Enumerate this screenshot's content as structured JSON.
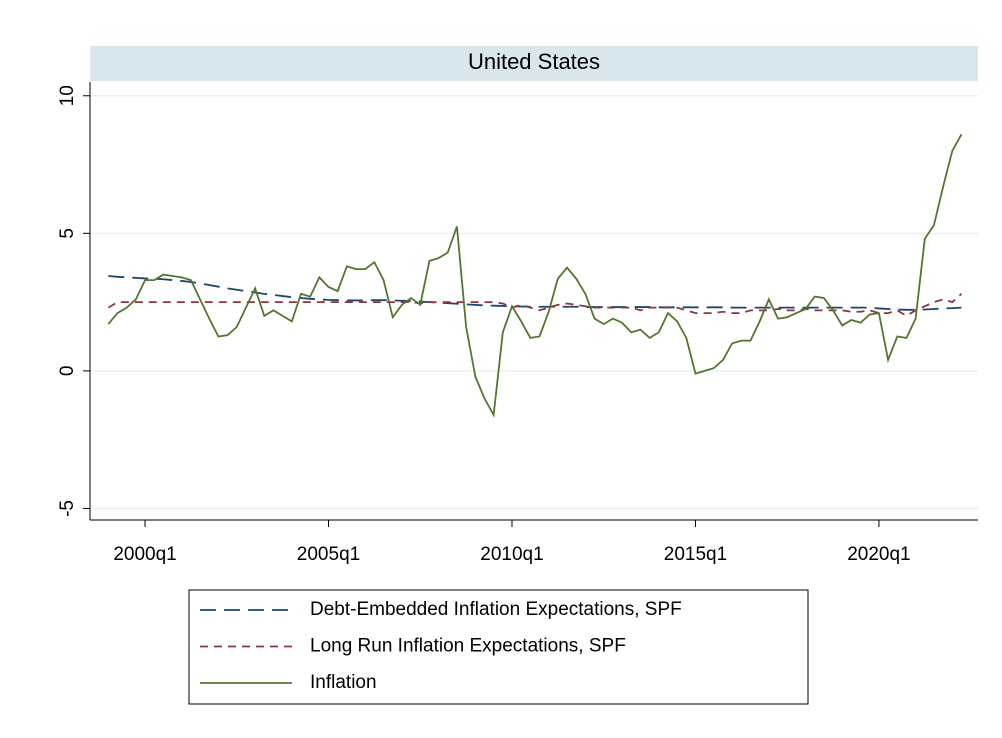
{
  "chart_data": {
    "type": "line",
    "title": "United States",
    "x": [
      1999,
      1999.25,
      1999.5,
      1999.75,
      2000,
      2000.25,
      2000.5,
      2000.75,
      2001,
      2001.25,
      2001.5,
      2001.75,
      2002,
      2002.25,
      2002.5,
      2002.75,
      2003,
      2003.25,
      2003.5,
      2003.75,
      2004,
      2004.25,
      2004.5,
      2004.75,
      2005,
      2005.25,
      2005.5,
      2005.75,
      2006,
      2006.25,
      2006.5,
      2006.75,
      2007,
      2007.25,
      2007.5,
      2007.75,
      2008,
      2008.25,
      2008.5,
      2008.75,
      2009,
      2009.25,
      2009.5,
      2009.75,
      2010,
      2010.25,
      2010.5,
      2010.75,
      2011,
      2011.25,
      2011.5,
      2011.75,
      2012,
      2012.25,
      2012.5,
      2012.75,
      2013,
      2013.25,
      2013.5,
      2013.75,
      2014,
      2014.25,
      2014.5,
      2014.75,
      2015,
      2015.25,
      2015.5,
      2015.75,
      2016,
      2016.25,
      2016.5,
      2016.75,
      2017,
      2017.25,
      2017.5,
      2017.75,
      2018,
      2018.25,
      2018.5,
      2018.75,
      2019,
      2019.25,
      2019.5,
      2019.75,
      2020,
      2020.25,
      2020.5,
      2020.75,
      2021,
      2021.25,
      2021.5,
      2021.75,
      2022,
      2022.25
    ],
    "series": [
      {
        "name": "Debt-Embedded Inflation Expectations, SPF",
        "color": "#1a476f",
        "dash": "16 8",
        "values": [
          3.45,
          3.42,
          3.4,
          3.38,
          3.36,
          3.35,
          3.33,
          3.3,
          3.27,
          3.23,
          3.18,
          3.12,
          3.06,
          3.0,
          2.95,
          2.9,
          2.85,
          2.8,
          2.76,
          2.72,
          2.68,
          2.65,
          2.62,
          2.6,
          2.58,
          2.57,
          2.56,
          2.56,
          2.56,
          2.57,
          2.57,
          2.56,
          2.55,
          2.54,
          2.52,
          2.5,
          2.48,
          2.46,
          2.44,
          2.42,
          2.4,
          2.38,
          2.37,
          2.36,
          2.35,
          2.34,
          2.33,
          2.33,
          2.33,
          2.33,
          2.33,
          2.33,
          2.32,
          2.32,
          2.32,
          2.32,
          2.32,
          2.32,
          2.32,
          2.32,
          2.31,
          2.31,
          2.31,
          2.31,
          2.31,
          2.31,
          2.31,
          2.31,
          2.3,
          2.3,
          2.3,
          2.3,
          2.3,
          2.3,
          2.3,
          2.3,
          2.3,
          2.3,
          2.3,
          2.3,
          2.3,
          2.3,
          2.3,
          2.3,
          2.27,
          2.25,
          2.23,
          2.22,
          2.22,
          2.23,
          2.25,
          2.27,
          2.28,
          2.3
        ]
      },
      {
        "name": "Long Run Inflation Expectations, SPF",
        "color": "#90353b",
        "dash": "8 6",
        "values": [
          2.3,
          2.5,
          2.5,
          2.5,
          2.5,
          2.5,
          2.5,
          2.5,
          2.5,
          2.5,
          2.5,
          2.5,
          2.5,
          2.5,
          2.5,
          2.5,
          2.5,
          2.5,
          2.5,
          2.5,
          2.5,
          2.5,
          2.5,
          2.5,
          2.5,
          2.5,
          2.5,
          2.5,
          2.5,
          2.5,
          2.5,
          2.5,
          2.5,
          2.5,
          2.45,
          2.5,
          2.5,
          2.5,
          2.5,
          2.5,
          2.5,
          2.5,
          2.5,
          2.45,
          2.3,
          2.4,
          2.3,
          2.2,
          2.3,
          2.4,
          2.45,
          2.4,
          2.35,
          2.3,
          2.3,
          2.3,
          2.3,
          2.3,
          2.2,
          2.3,
          2.3,
          2.3,
          2.3,
          2.2,
          2.1,
          2.1,
          2.1,
          2.15,
          2.1,
          2.1,
          2.2,
          2.2,
          2.2,
          2.25,
          2.2,
          2.2,
          2.25,
          2.2,
          2.2,
          2.2,
          2.2,
          2.15,
          2.15,
          2.2,
          2.1,
          2.1,
          2.2,
          2.0,
          2.2,
          2.35,
          2.5,
          2.6,
          2.5,
          2.8
        ]
      },
      {
        "name": "Inflation",
        "color": "#55752f",
        "dash": "none",
        "values": [
          1.7,
          2.1,
          2.3,
          2.6,
          3.3,
          3.3,
          3.5,
          3.45,
          3.4,
          3.3,
          2.6,
          1.9,
          1.25,
          1.3,
          1.6,
          2.3,
          3.0,
          2.0,
          2.2,
          2.0,
          1.8,
          2.8,
          2.7,
          3.4,
          3.05,
          2.9,
          3.8,
          3.7,
          3.7,
          3.95,
          3.3,
          1.95,
          2.4,
          2.65,
          2.4,
          4.0,
          4.1,
          4.3,
          5.25,
          1.6,
          -0.2,
          -1.0,
          -1.6,
          1.4,
          2.35,
          1.8,
          1.2,
          1.25,
          2.15,
          3.35,
          3.75,
          3.35,
          2.8,
          1.9,
          1.7,
          1.9,
          1.75,
          1.4,
          1.5,
          1.2,
          1.4,
          2.1,
          1.8,
          1.2,
          -0.1,
          0.0,
          0.1,
          0.4,
          1.0,
          1.1,
          1.1,
          1.8,
          2.6,
          1.9,
          1.95,
          2.1,
          2.25,
          2.7,
          2.65,
          2.2,
          1.65,
          1.85,
          1.75,
          2.05,
          2.1,
          0.4,
          1.25,
          1.2,
          1.9,
          4.8,
          5.3,
          6.7,
          8.0,
          8.6
        ]
      }
    ],
    "xlim": [
      1998.5,
      2022.7
    ],
    "xticks": [
      {
        "value": 2000,
        "label": "2000q1"
      },
      {
        "value": 2005,
        "label": "2005q1"
      },
      {
        "value": 2010,
        "label": "2010q1"
      },
      {
        "value": 2015,
        "label": "2015q1"
      },
      {
        "value": 2020,
        "label": "2020q1"
      }
    ],
    "ylim": [
      -5.42,
      10.5
    ],
    "yticks": [
      -5,
      0,
      5,
      10
    ],
    "grid": true,
    "legend": "bottom"
  }
}
